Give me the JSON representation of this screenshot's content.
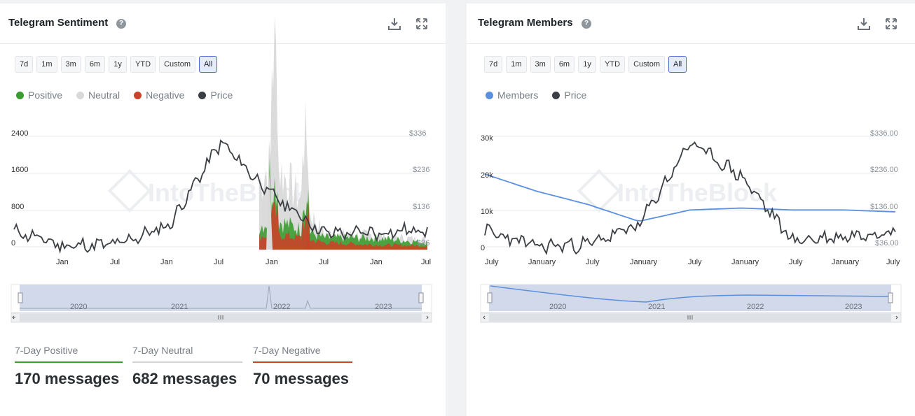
{
  "sentiment": {
    "title": "Telegram Sentiment",
    "help_icon": "?",
    "ranges": [
      "7d",
      "1m",
      "3m",
      "6m",
      "1y",
      "YTD",
      "Custom",
      "All"
    ],
    "active_range": "All",
    "legend": [
      {
        "label": "Positive",
        "color": "#3a9b2f"
      },
      {
        "label": "Neutral",
        "color": "#d9d9d9"
      },
      {
        "label": "Negative",
        "color": "#c9432a"
      },
      {
        "label": "Price",
        "color": "#3b3f44"
      }
    ],
    "y_left": [
      "2400",
      "1600",
      "800",
      "0"
    ],
    "y_right": [
      "$336",
      "$236",
      "$136",
      "$36"
    ],
    "x_labels": [
      "Jan",
      "Jul",
      "Jan",
      "Jul",
      "Jan",
      "Jul",
      "Jan",
      "Jul"
    ],
    "nav_years": [
      "2020",
      "2021",
      "2022",
      "2023"
    ],
    "watermark": "IntoTheBlock",
    "stats": [
      {
        "label": "7-Day Positive",
        "value": "170 messages",
        "color": "#3a9b2f"
      },
      {
        "label": "7-Day Neutral",
        "value": "682 messages",
        "color": "#d3d3d3"
      },
      {
        "label": "7-Day Negative",
        "value": "70 messages",
        "color": "#c9432a"
      }
    ]
  },
  "members": {
    "title": "Telegram Members",
    "help_icon": "?",
    "ranges": [
      "7d",
      "1m",
      "3m",
      "6m",
      "1y",
      "YTD",
      "Custom",
      "All"
    ],
    "active_range": "All",
    "legend": [
      {
        "label": "Members",
        "color": "#5b8fe0"
      },
      {
        "label": "Price",
        "color": "#3b3f44"
      }
    ],
    "y_left": [
      "30k",
      "20k",
      "10k",
      "0"
    ],
    "y_right": [
      "$336.00",
      "$236.00",
      "$136.00",
      "$36.00"
    ],
    "x_labels": [
      "July",
      "January",
      "July",
      "January",
      "July",
      "January",
      "July",
      "January",
      "July"
    ],
    "nav_years": [
      "2020",
      "2021",
      "2022",
      "2023"
    ],
    "watermark": "IntoTheBlock"
  },
  "chart_data": [
    {
      "type": "area",
      "title": "Telegram Sentiment",
      "x": [
        "Jul 2019",
        "Jan 2020",
        "Jul 2020",
        "Jan 2021",
        "Jul 2021",
        "Jan 2022",
        "Jul 2022",
        "Jan 2023",
        "Jul 2023"
      ],
      "series": [
        {
          "name": "Positive",
          "values": [
            0,
            0,
            0,
            0,
            0,
            650,
            250,
            250,
            150
          ]
        },
        {
          "name": "Neutral",
          "values": [
            0,
            0,
            0,
            0,
            0,
            1900,
            350,
            300,
            200
          ]
        },
        {
          "name": "Negative",
          "values": [
            0,
            0,
            0,
            0,
            0,
            350,
            150,
            100,
            80
          ]
        },
        {
          "name": "Price",
          "values": [
            85,
            45,
            50,
            100,
            320,
            180,
            80,
            80,
            90
          ]
        }
      ],
      "ylim_left": [
        0,
        2400
      ],
      "ylim_right": [
        36,
        336
      ]
    },
    {
      "type": "line",
      "title": "Telegram Members",
      "x": [
        "July",
        "January",
        "July",
        "January",
        "July",
        "January",
        "July",
        "January",
        "July"
      ],
      "series": [
        {
          "name": "Members",
          "values": [
            20000,
            15500,
            12000,
            7500,
            10500,
            11000,
            10500,
            10500,
            10000
          ]
        },
        {
          "name": "Price",
          "values": [
            85,
            45,
            50,
            100,
            320,
            230,
            60,
            70,
            90
          ]
        }
      ],
      "ylim_left": [
        0,
        30000
      ],
      "ylim_right": [
        36,
        336
      ]
    }
  ]
}
